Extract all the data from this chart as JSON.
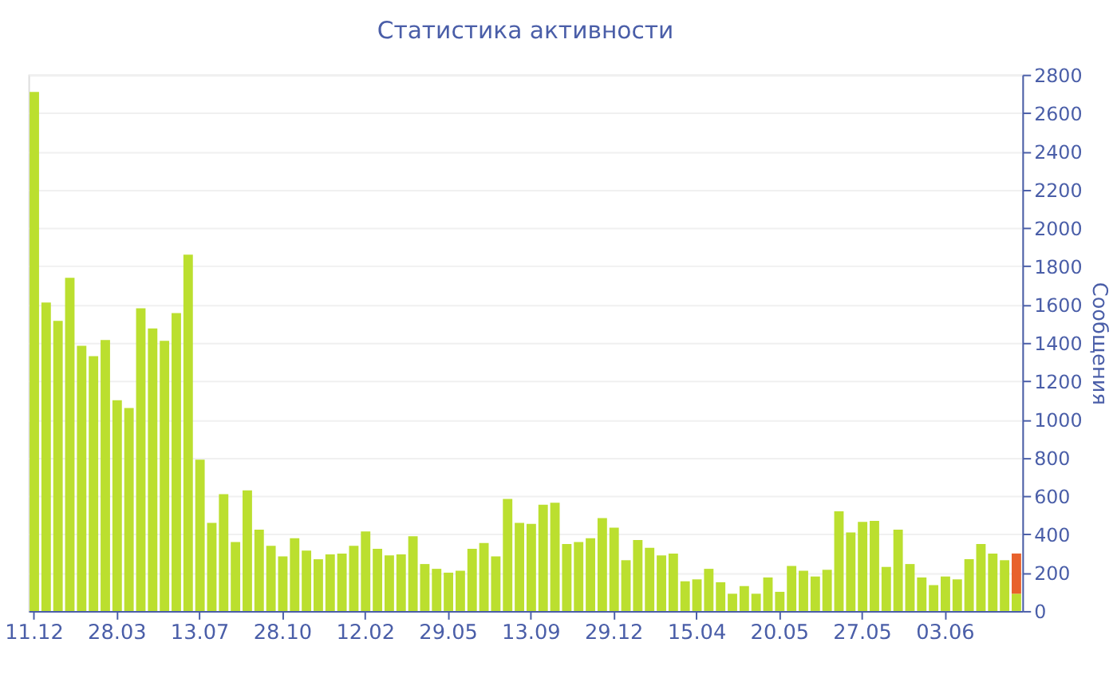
{
  "chart_data": {
    "type": "bar",
    "title": "Статистика активности",
    "ylabel": "Сообщения",
    "stacked": true,
    "categories": [
      "11.12",
      null,
      null,
      null,
      null,
      null,
      null,
      "28.03",
      null,
      null,
      null,
      null,
      null,
      null,
      "13.07",
      null,
      null,
      null,
      null,
      null,
      null,
      "28.10",
      null,
      null,
      null,
      null,
      null,
      null,
      "12.02",
      null,
      null,
      null,
      null,
      null,
      null,
      "29.05",
      null,
      null,
      null,
      null,
      null,
      null,
      "13.09",
      null,
      null,
      null,
      null,
      null,
      null,
      "29.12",
      null,
      null,
      null,
      null,
      null,
      null,
      "15.04",
      null,
      null,
      null,
      null,
      null,
      null,
      "20.05",
      null,
      null,
      null,
      null,
      null,
      null,
      "27.05",
      null,
      null,
      null,
      null,
      null,
      null,
      "03.06",
      null,
      null,
      null,
      null,
      null,
      null
    ],
    "series": [
      {
        "color": "#bbdf2f",
        "values": [
          2710,
          1610,
          1515,
          1740,
          1385,
          1330,
          1415,
          1100,
          1060,
          1580,
          1475,
          1410,
          1555,
          1860,
          790,
          460,
          610,
          360,
          630,
          425,
          340,
          285,
          380,
          315,
          270,
          295,
          300,
          340,
          415,
          325,
          290,
          295,
          390,
          245,
          220,
          200,
          210,
          325,
          355,
          285,
          585,
          460,
          455,
          555,
          565,
          350,
          360,
          380,
          485,
          435,
          265,
          370,
          330,
          290,
          300,
          155,
          165,
          220,
          150,
          90,
          130,
          90,
          175,
          100,
          235,
          210,
          180,
          215,
          520,
          410,
          465,
          470,
          230,
          425,
          245,
          175,
          135,
          180,
          165,
          270,
          350,
          300,
          265,
          90
        ]
      },
      {
        "color": "#e8612c",
        "values": [
          null,
          null,
          null,
          null,
          null,
          null,
          null,
          null,
          null,
          null,
          null,
          null,
          null,
          null,
          null,
          null,
          null,
          null,
          null,
          null,
          null,
          null,
          null,
          null,
          null,
          null,
          null,
          null,
          null,
          null,
          null,
          null,
          null,
          null,
          null,
          null,
          null,
          null,
          null,
          null,
          null,
          null,
          null,
          null,
          null,
          null,
          null,
          null,
          null,
          null,
          null,
          null,
          null,
          null,
          null,
          null,
          null,
          null,
          null,
          null,
          null,
          null,
          null,
          null,
          null,
          null,
          null,
          null,
          null,
          null,
          null,
          null,
          null,
          null,
          null,
          null,
          null,
          null,
          null,
          null,
          null,
          null,
          null,
          210
        ]
      }
    ],
    "ylim": [
      0,
      2800
    ],
    "yticks": [
      0,
      200,
      400,
      600,
      800,
      1000,
      1200,
      1400,
      1600,
      1800,
      2000,
      2200,
      2400,
      2600,
      2800
    ],
    "grid": "y",
    "legend": false
  }
}
